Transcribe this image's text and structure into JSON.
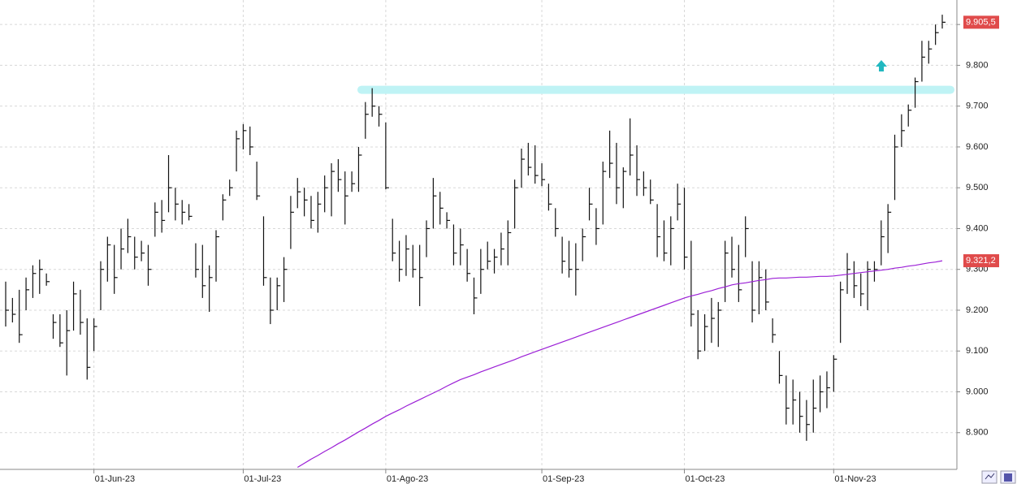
{
  "chart_data": {
    "type": "hlc",
    "categories": [
      null,
      null,
      null,
      null,
      null,
      null,
      null,
      null,
      null,
      null,
      null,
      null,
      null,
      "01-Jun-23",
      null,
      null,
      null,
      null,
      null,
      null,
      null,
      null,
      null,
      null,
      null,
      null,
      null,
      null,
      null,
      null,
      null,
      null,
      null,
      null,
      null,
      "01-Jul-23",
      null,
      null,
      null,
      null,
      null,
      null,
      null,
      null,
      null,
      null,
      null,
      null,
      null,
      null,
      null,
      null,
      null,
      null,
      null,
      null,
      "01-Ago-23",
      null,
      null,
      null,
      null,
      null,
      null,
      null,
      null,
      null,
      null,
      null,
      null,
      null,
      null,
      null,
      null,
      null,
      null,
      null,
      null,
      null,
      null,
      "01-Sep-23",
      null,
      null,
      null,
      null,
      null,
      null,
      null,
      null,
      null,
      null,
      null,
      null,
      null,
      null,
      null,
      null,
      null,
      null,
      null,
      null,
      "01-Oct-23",
      null,
      null,
      null,
      null,
      null,
      null,
      null,
      null,
      null,
      null,
      null,
      null,
      null,
      null,
      null,
      null,
      null,
      null,
      null,
      null,
      null,
      "01-Nov-23",
      null,
      null,
      null,
      null,
      null,
      null,
      null,
      null,
      null,
      null,
      null,
      null,
      null,
      null,
      null,
      null
    ],
    "high": [
      9270,
      9230,
      9250,
      9280,
      9310,
      9324,
      9290,
      9190,
      9190,
      9200,
      9270,
      9250,
      9180,
      9180,
      9320,
      9380,
      9360,
      9400,
      9424,
      9380,
      9370,
      9360,
      9464,
      9470,
      9580,
      9500,
      9470,
      9460,
      9364,
      9360,
      9310,
      9396,
      9484,
      9520,
      9640,
      9656,
      9650,
      9564,
      9430,
      9280,
      9280,
      9330,
      9480,
      9524,
      9500,
      9480,
      9490,
      9530,
      9560,
      9570,
      9540,
      9540,
      9600,
      9710,
      9744,
      9700,
      9660,
      9424,
      9370,
      9384,
      9360,
      9360,
      9420,
      9524,
      9490,
      9440,
      9410,
      9400,
      9350,
      9280,
      9350,
      9368,
      9350,
      9390,
      9420,
      9520,
      9596,
      9610,
      9604,
      9560,
      9510,
      9450,
      9380,
      9370,
      9364,
      9400,
      9500,
      9450,
      9564,
      9640,
      9610,
      9550,
      9670,
      9604,
      9540,
      9520,
      9460,
      9420,
      9430,
      9510,
      9500,
      9370,
      9200,
      9190,
      9230,
      9220,
      9370,
      9380,
      9360,
      9430,
      9320,
      9320,
      9300,
      9180,
      9100,
      9040,
      9030,
      9000,
      8980,
      9030,
      9040,
      9050,
      9090,
      9270,
      9340,
      9320,
      9290,
      9320,
      9320,
      9420,
      9460,
      9630,
      9680,
      9704,
      9770,
      9860,
      9860,
      9900,
      9924
    ],
    "low": [
      9160,
      9170,
      9120,
      9200,
      9230,
      9240,
      9260,
      9130,
      9110,
      9040,
      9150,
      9140,
      9030,
      9100,
      9200,
      9270,
      9240,
      9300,
      9340,
      9300,
      9320,
      9260,
      9380,
      9390,
      9440,
      9420,
      9410,
      9420,
      9280,
      9230,
      9196,
      9270,
      9420,
      9480,
      9540,
      9594,
      9580,
      9470,
      9260,
      9166,
      9200,
      9220,
      9350,
      9450,
      9430,
      9400,
      9390,
      9440,
      9430,
      9490,
      9410,
      9490,
      9490,
      9620,
      9674,
      9650,
      9496,
      9320,
      9270,
      9284,
      9280,
      9210,
      9330,
      9400,
      9410,
      9400,
      9310,
      9310,
      9270,
      9190,
      9240,
      9300,
      9290,
      9310,
      9310,
      9400,
      9500,
      9530,
      9510,
      9504,
      9444,
      9380,
      9290,
      9280,
      9236,
      9320,
      9420,
      9360,
      9410,
      9524,
      9460,
      9450,
      9530,
      9480,
      9480,
      9460,
      9330,
      9320,
      9310,
      9420,
      9300,
      9160,
      9080,
      9100,
      9120,
      9110,
      9220,
      9280,
      9220,
      9330,
      9170,
      9190,
      9200,
      9120,
      9020,
      8920,
      8920,
      8900,
      8880,
      8900,
      8950,
      8960,
      9000,
      9120,
      9240,
      9230,
      9210,
      9200,
      9270,
      9310,
      9340,
      9470,
      9600,
      9650,
      9696,
      9760,
      9804,
      9850,
      9890
    ],
    "close": [
      9200,
      9190,
      9140,
      9250,
      9290,
      9300,
      9270,
      9170,
      9120,
      9150,
      9240,
      9170,
      9060,
      9160,
      9300,
      9360,
      9280,
      9350,
      9380,
      9330,
      9340,
      9300,
      9440,
      9420,
      9500,
      9460,
      9440,
      9430,
      9300,
      9260,
      9280,
      9380,
      9470,
      9500,
      9620,
      9640,
      9600,
      9480,
      9280,
      9200,
      9260,
      9300,
      9440,
      9490,
      9470,
      9420,
      9460,
      9500,
      9540,
      9520,
      9480,
      9510,
      9580,
      9680,
      9700,
      9680,
      9500,
      9340,
      9300,
      9350,
      9300,
      9280,
      9400,
      9480,
      9450,
      9420,
      9340,
      9360,
      9290,
      9230,
      9300,
      9320,
      9330,
      9350,
      9390,
      9500,
      9570,
      9550,
      9530,
      9520,
      9460,
      9400,
      9320,
      9300,
      9300,
      9380,
      9460,
      9400,
      9540,
      9560,
      9500,
      9540,
      9580,
      9520,
      9500,
      9470,
      9380,
      9340,
      9400,
      9460,
      9330,
      9190,
      9100,
      9160,
      9180,
      9200,
      9340,
      9300,
      9250,
      9400,
      9200,
      9280,
      9220,
      9140,
      9040,
      8960,
      8980,
      8940,
      8920,
      8960,
      9000,
      9010,
      9080,
      9250,
      9300,
      9260,
      9240,
      9300,
      9300,
      9380,
      9440,
      9600,
      9640,
      9690,
      9760,
      9820,
      9840,
      9880,
      9905.5
    ],
    "bar_color": "#111111",
    "moving_average": {
      "color": "#9b1fd6",
      "values": [
        null,
        null,
        null,
        null,
        null,
        null,
        null,
        null,
        null,
        null,
        null,
        null,
        null,
        null,
        null,
        null,
        null,
        null,
        null,
        null,
        null,
        null,
        null,
        null,
        null,
        null,
        null,
        null,
        null,
        null,
        null,
        null,
        null,
        null,
        null,
        null,
        null,
        null,
        null,
        null,
        null,
        null,
        null,
        8815,
        8825,
        8835,
        8844,
        8854,
        8863,
        8873,
        8882,
        8892,
        8902,
        8911,
        8921,
        8930,
        8940,
        8948,
        8956,
        8965,
        8973,
        8981,
        8989,
        8997,
        9005,
        9014,
        9022,
        9030,
        9036,
        9042,
        9049,
        9055,
        9061,
        9067,
        9073,
        9079,
        9086,
        9092,
        9098,
        9104,
        9110,
        9116,
        9122,
        9128,
        9134,
        9140,
        9146,
        9152,
        9158,
        9164,
        9170,
        9176,
        9182,
        9188,
        9194,
        9200,
        9206,
        9212,
        9218,
        9224,
        9230,
        9235,
        9239,
        9244,
        9248,
        9253,
        9257,
        9262,
        9265,
        9267,
        9270,
        9273,
        9275,
        9278,
        9279,
        9279,
        9280,
        9281,
        9281,
        9282,
        9283,
        9283,
        9284,
        9286,
        9288,
        9290,
        9292,
        9294,
        9296,
        9298,
        9300,
        9303,
        9305,
        9308,
        9310,
        9313,
        9316,
        9318,
        9321.2
      ]
    },
    "level_line": {
      "value": 9740,
      "color": "#bff3f5"
    },
    "price_tags": [
      {
        "value": 9905.5,
        "label": "9.905,5"
      },
      {
        "value": 9321.2,
        "label": "9.321,2"
      }
    ],
    "tag_color": "#e04b4b",
    "ylim": [
      8810,
      9960
    ],
    "yticks": [
      {
        "value": 8900,
        "label": "8.900"
      },
      {
        "value": 9000,
        "label": "9.000"
      },
      {
        "value": 9100,
        "label": "9.100"
      },
      {
        "value": 9200,
        "label": "9.200"
      },
      {
        "value": 9300,
        "label": "9.300"
      },
      {
        "value": 9400,
        "label": "9.400"
      },
      {
        "value": 9500,
        "label": "9.500"
      },
      {
        "value": 9600,
        "label": "9.600"
      },
      {
        "value": 9700,
        "label": "9.700"
      },
      {
        "value": 9800,
        "label": "9.800"
      },
      {
        "value": 9900,
        "label": "9.900"
      }
    ],
    "grid": true
  }
}
